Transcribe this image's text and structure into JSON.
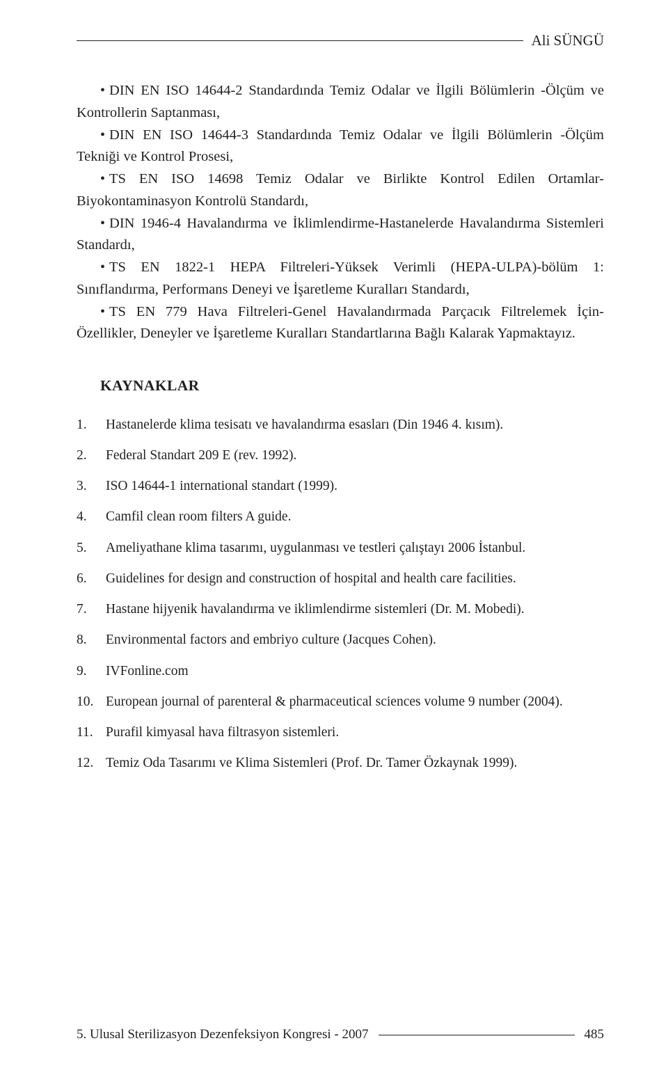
{
  "colors": {
    "text": "#231f20",
    "background": "#ffffff",
    "rule": "#231f20"
  },
  "typography": {
    "body_fontsize_pt": 15,
    "heading_fontsize_pt": 16,
    "ref_fontsize_pt": 14,
    "font_family": "Bookman Old Style"
  },
  "header": {
    "author": "Ali SÜNGÜ"
  },
  "bullets": [
    "DIN EN ISO 14644-2 Standardında Temiz Odalar ve İlgili Bölümlerin -Ölçüm ve Kontrollerin Saptanması,",
    "DIN EN ISO 14644-3 Standardında Temiz Odalar ve İlgili Bölümlerin -Ölçüm Tekniği ve Kontrol Prosesi,",
    "TS EN ISO 14698 Temiz Odalar ve Birlikte Kontrol Edilen Ortamlar- Biyokontaminasyon Kontrolü Standardı,",
    "DIN 1946-4 Havalandırma ve İklimlendirme-Hastanelerde Havalandırma Sistemleri Standardı,",
    "TS EN 1822-1 HEPA Filtreleri-Yüksek Verimli (HEPA-ULPA)-bölüm 1: Sınıflandırma, Performans Deneyi ve İşaretleme Kuralları Standardı,",
    "TS EN 779 Hava Filtreleri-Genel Havalandırmada Parçacık Filtrelemek İçin-Özellikler, Deneyler ve İşaretleme Kuralları Standartlarına Bağlı Kalarak Yapmaktayız."
  ],
  "section_heading": "KAYNAKLAR",
  "references": [
    {
      "num": "1.",
      "text": "Hastanelerde klima tesisatı ve havalandırma esasları (Din 1946 4. kısım)."
    },
    {
      "num": "2.",
      "text": "Federal Standart 209 E (rev. 1992)."
    },
    {
      "num": "3.",
      "text": "ISO 14644-1 international standart (1999)."
    },
    {
      "num": "4.",
      "text": "Camfil clean room filters A guide."
    },
    {
      "num": "5.",
      "text": "Ameliyathane klima tasarımı, uygulanması ve testleri çalıştayı 2006 İstanbul."
    },
    {
      "num": "6.",
      "text": "Guidelines for design and construction of hospital and health care facilities."
    },
    {
      "num": "7.",
      "text": "Hastane hijyenik havalandırma ve iklimlendirme sistemleri (Dr. M. Mobedi)."
    },
    {
      "num": "8.",
      "text": "Environmental factors and embriyo culture (Jacques Cohen)."
    },
    {
      "num": "9.",
      "text": "IVFonline.com"
    },
    {
      "num": "10.",
      "text": "European journal of parenteral & pharmaceutical sciences volume 9 number (2004)."
    },
    {
      "num": "11.",
      "text": "Purafil kimyasal hava filtrasyon sistemleri."
    },
    {
      "num": "12.",
      "text": "Temiz Oda Tasarımı ve Klima Sistemleri (Prof. Dr. Tamer Özkaynak 1999)."
    }
  ],
  "footer": {
    "text": "5. Ulusal Sterilizasyon Dezenfeksiyon Kongresi - 2007",
    "page": "485"
  }
}
